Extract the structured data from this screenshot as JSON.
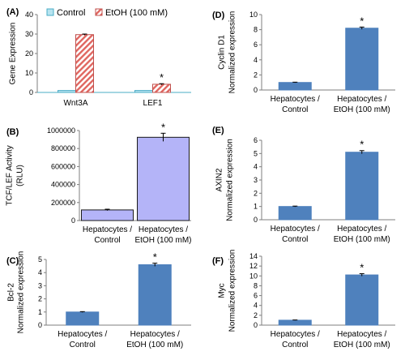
{
  "chart_data": [
    {
      "panel": "(A)",
      "type": "bar",
      "ylabel": "Gene Expression",
      "ylim": [
        0,
        40
      ],
      "yticks": [
        0,
        10,
        20,
        30,
        40
      ],
      "categories": [
        "Wnt3A",
        "LEF1"
      ],
      "series": [
        {
          "name": "Control",
          "values": [
            1,
            1
          ],
          "errors": [
            0,
            0
          ],
          "color": "#b7e4f0",
          "edge": "#4aacc6",
          "pattern": "solid"
        },
        {
          "name": "EtOH (100 mM)",
          "values": [
            29.7,
            4.2
          ],
          "errors": [
            0.3,
            0.3
          ],
          "color": "#ffffff",
          "edge": "#c0504d",
          "pattern": "hatched"
        }
      ],
      "annotations": [
        {
          "category": 1,
          "series": 1,
          "text": "*"
        }
      ],
      "legend": "top"
    },
    {
      "panel": "(B)",
      "type": "bar",
      "ylabel": [
        "TCF/LEF Activity",
        "(RLU)"
      ],
      "ylim": [
        0,
        1000000
      ],
      "yticks": [
        0,
        200000,
        400000,
        600000,
        800000,
        1000000
      ],
      "categories": [
        [
          "Hepatocytes /",
          "Control"
        ],
        [
          "Hepatocytes /",
          "EtOH (100 mM)"
        ]
      ],
      "values": [
        118000,
        925000
      ],
      "errors": [
        8000,
        45000
      ],
      "color": "#b4b4f8",
      "edge": "#1a1a1a",
      "annotations": [
        {
          "category": 1,
          "text": "*"
        }
      ]
    },
    {
      "panel": "(C)",
      "type": "bar",
      "ylabel": [
        "Bcl-2",
        "Normalized expression"
      ],
      "ylim": [
        0,
        5
      ],
      "yticks": [
        0,
        1,
        2,
        3,
        4,
        5
      ],
      "categories": [
        [
          "Hepatocytes /",
          "Control"
        ],
        [
          "Hepatocytes /",
          "EtOH (100 mM)"
        ]
      ],
      "values": [
        1,
        4.6
      ],
      "errors": [
        0.03,
        0.12
      ],
      "color": "#4f81bd",
      "edge": "#4f81bd",
      "annotations": [
        {
          "category": 1,
          "text": "*"
        }
      ]
    },
    {
      "panel": "(D)",
      "type": "bar",
      "ylabel": [
        "Cyclin D1",
        "Normalized expression"
      ],
      "ylim": [
        0,
        10
      ],
      "yticks": [
        0,
        2,
        4,
        6,
        8,
        10
      ],
      "categories": [
        [
          "Hepatocytes /",
          "Control"
        ],
        [
          "Hepatocytes /",
          "EtOH (100 mM)"
        ]
      ],
      "values": [
        1,
        8.2
      ],
      "errors": [
        0.04,
        0.15
      ],
      "color": "#4f81bd",
      "edge": "#4f81bd",
      "annotations": [
        {
          "category": 1,
          "text": "*"
        }
      ]
    },
    {
      "panel": "(E)",
      "type": "bar",
      "ylabel": [
        "AXIN2",
        "Normalized expression"
      ],
      "ylim": [
        0,
        6
      ],
      "yticks": [
        0,
        1,
        2,
        3,
        4,
        5,
        6
      ],
      "categories": [
        [
          "Hepatocytes /",
          "Control"
        ],
        [
          "Hepatocytes /",
          "EtOH (100 mM)"
        ]
      ],
      "values": [
        1,
        5.1
      ],
      "errors": [
        0.03,
        0.12
      ],
      "color": "#4f81bd",
      "edge": "#4f81bd",
      "annotations": [
        {
          "category": 1,
          "text": "*"
        }
      ]
    },
    {
      "panel": "(F)",
      "type": "bar",
      "ylabel": [
        "Myc",
        "Normalized expression"
      ],
      "ylim": [
        0,
        14
      ],
      "yticks": [
        0,
        2,
        4,
        6,
        8,
        10,
        12,
        14
      ],
      "categories": [
        [
          "Hepatocytes /",
          "Control"
        ],
        [
          "Hepatocytes /",
          "EtOH (100 mM)"
        ]
      ],
      "values": [
        1,
        10.2
      ],
      "errors": [
        0.05,
        0.25
      ],
      "color": "#4f81bd",
      "edge": "#4f81bd",
      "annotations": [
        {
          "category": 1,
          "text": "*"
        }
      ]
    }
  ]
}
